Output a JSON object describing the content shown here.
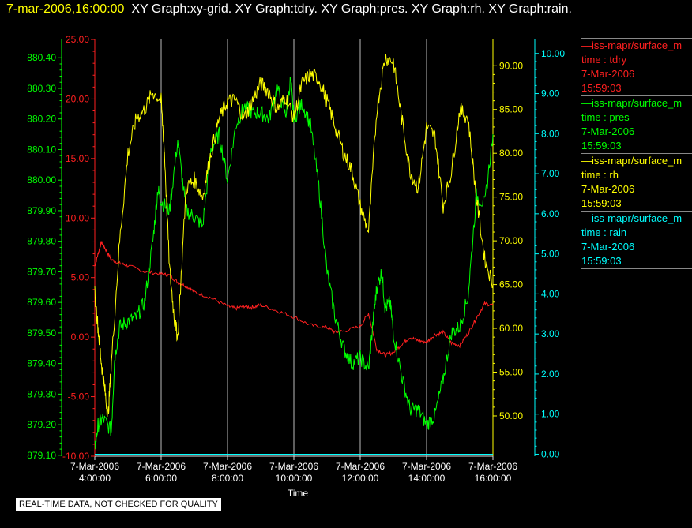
{
  "header": {
    "timestamp": "7-mar-2006,16:00:00",
    "graphs": "XY Graph:xy-grid.  XY Graph:tdry.  XY Graph:pres.  XY Graph:rh.  XY Graph:rain."
  },
  "notice": "REAL-TIME DATA, NOT CHECKED FOR QUALITY",
  "colors": {
    "tdry": "#ff2020",
    "pres": "#00ff00",
    "rh": "#ffff00",
    "rain": "#00ffff",
    "grid": "#bbbbbb"
  },
  "legend": [
    {
      "name": "—iss-mapr/surface_m",
      "var": "time : tdry",
      "date": "7-Mar-2006",
      "time": "15:59:03",
      "color": "#ff2020"
    },
    {
      "name": "—iss-mapr/surface_m",
      "var": "time : pres",
      "date": "7-Mar-2006",
      "time": "15:59:03",
      "color": "#00ff00"
    },
    {
      "name": "—iss-mapr/surface_m",
      "var": "time : rh",
      "date": "7-Mar-2006",
      "time": "15:59:03",
      "color": "#ffff00"
    },
    {
      "name": "—iss-mapr/surface_m",
      "var": "time : rain",
      "date": "7-Mar-2006",
      "time": "15:59:03",
      "color": "#00ffff"
    }
  ],
  "chart_data": {
    "type": "line",
    "xlabel": "Time",
    "x_ticks": [
      [
        "7-Mar-2006",
        "4:00:00"
      ],
      [
        "7-Mar-2006",
        "6:00:00"
      ],
      [
        "7-Mar-2006",
        "8:00:00"
      ],
      [
        "7-Mar-2006",
        "10:00:00"
      ],
      [
        "7-Mar-2006",
        "12:00:00"
      ],
      [
        "7-Mar-2006",
        "14:00:00"
      ],
      [
        "7-Mar-2006",
        "16:00:00"
      ]
    ],
    "xlim_hours": [
      4.0,
      16.0
    ],
    "grid": true,
    "axes": {
      "pres": {
        "ticks": [
          "879.10",
          "879.20",
          "879.30",
          "879.40",
          "879.50",
          "879.60",
          "879.70",
          "879.80",
          "879.90",
          "880.00",
          "880.10",
          "880.20",
          "880.30",
          "880.40"
        ],
        "ylim": [
          879.097,
          880.46
        ],
        "color": "#00ff00"
      },
      "tdry": {
        "ticks": [
          "-10.00",
          "-5.00",
          "0.00",
          "5.00",
          "10.00",
          "15.00",
          "20.00",
          "25.00"
        ],
        "ylim": [
          -10,
          25
        ],
        "color": "#ff2020"
      },
      "rh": {
        "ticks": [
          "50.00",
          "55.00",
          "60.00",
          "65.00",
          "70.00",
          "75.00",
          "80.00",
          "85.00",
          "90.00"
        ],
        "ylim": [
          45.4,
          93.0
        ],
        "color": "#ffff00"
      },
      "rain": {
        "ticks": [
          "0.00",
          "1.00",
          "2.00",
          "3.00",
          "4.00",
          "5.00",
          "6.00",
          "7.00",
          "8.00",
          "9.00",
          "10.00"
        ],
        "ylim": [
          -0.05,
          10.35
        ],
        "color": "#00ffff"
      }
    },
    "series": [
      {
        "name": "tdry",
        "axis": "tdry",
        "x": [
          4.0,
          4.1,
          4.2,
          4.3,
          4.5,
          4.75,
          5.0,
          5.5,
          6.0,
          6.25,
          6.5,
          6.75,
          7.0,
          7.5,
          8.0,
          8.25,
          8.5,
          8.75,
          9.0,
          9.5,
          10.0,
          10.5,
          11.0,
          11.25,
          11.5,
          12.0,
          12.25,
          12.5,
          12.75,
          13.0,
          13.25,
          13.5,
          13.75,
          14.0,
          14.25,
          14.5,
          14.75,
          15.0,
          15.25,
          15.5,
          15.75,
          16.0
        ],
        "y": [
          6.0,
          7.0,
          8.0,
          7.5,
          6.5,
          6.2,
          6.0,
          5.5,
          5.3,
          5.2,
          4.6,
          4.3,
          3.8,
          3.3,
          2.6,
          2.4,
          2.6,
          2.5,
          2.7,
          2.2,
          1.7,
          1.0,
          0.8,
          0.4,
          0.5,
          0.9,
          2.0,
          -1.0,
          -1.5,
          -1.3,
          -0.6,
          0.0,
          -0.3,
          -0.4,
          0.2,
          0.4,
          -0.5,
          -0.7,
          0.3,
          1.6,
          2.8,
          2.7
        ]
      },
      {
        "name": "pres",
        "axis": "pres",
        "x": [
          4.0,
          4.1,
          4.25,
          4.5,
          4.6,
          4.75,
          5.0,
          5.25,
          5.5,
          5.75,
          5.9,
          6.0,
          6.25,
          6.5,
          6.75,
          7.0,
          7.25,
          7.5,
          7.75,
          8.0,
          8.25,
          8.5,
          8.75,
          9.0,
          9.25,
          9.5,
          9.75,
          9.9,
          10.0,
          10.25,
          10.5,
          10.75,
          11.0,
          11.25,
          11.5,
          11.75,
          12.0,
          12.25,
          12.4,
          12.5,
          12.65,
          12.75,
          12.9,
          13.0,
          13.25,
          13.5,
          13.75,
          14.0,
          14.25,
          14.5,
          14.75,
          15.0,
          15.25,
          15.5,
          15.75,
          16.0
        ],
        "y": [
          879.12,
          879.2,
          879.22,
          879.18,
          879.42,
          879.52,
          879.54,
          879.55,
          879.6,
          879.8,
          879.97,
          879.93,
          879.9,
          880.13,
          879.9,
          879.88,
          879.85,
          880.1,
          880.15,
          880.0,
          880.18,
          880.24,
          880.22,
          880.22,
          880.2,
          880.3,
          880.21,
          880.33,
          880.2,
          880.25,
          880.18,
          879.98,
          879.7,
          879.55,
          879.45,
          879.4,
          879.42,
          879.38,
          879.55,
          879.65,
          879.7,
          879.58,
          879.6,
          879.5,
          879.36,
          879.25,
          879.25,
          879.2,
          879.23,
          879.35,
          879.5,
          879.52,
          879.62,
          879.95,
          879.92,
          880.15
        ]
      },
      {
        "name": "rh",
        "axis": "rh",
        "x": [
          4.0,
          4.1,
          4.2,
          4.3,
          4.4,
          4.5,
          4.75,
          5.0,
          5.25,
          5.5,
          5.75,
          6.0,
          6.1,
          6.25,
          6.4,
          6.5,
          6.75,
          7.0,
          7.25,
          7.5,
          7.75,
          8.0,
          8.25,
          8.5,
          8.75,
          9.0,
          9.25,
          9.5,
          9.75,
          10.0,
          10.25,
          10.5,
          10.75,
          11.0,
          11.25,
          11.5,
          11.75,
          12.0,
          12.25,
          12.5,
          12.75,
          13.0,
          13.25,
          13.5,
          13.75,
          14.0,
          14.25,
          14.5,
          14.75,
          15.0,
          15.25,
          15.5,
          15.75,
          16.0
        ],
        "y": [
          64.0,
          60.0,
          56.0,
          53.0,
          50.0,
          56.0,
          70.0,
          80.0,
          84.0,
          85.0,
          87.0,
          86.0,
          80.0,
          67.0,
          61.0,
          59.0,
          76.0,
          77.0,
          75.0,
          80.0,
          84.0,
          86.0,
          86.0,
          84.0,
          86.0,
          88.0,
          87.0,
          85.0,
          86.5,
          84.0,
          88.0,
          89.0,
          88.5,
          86.0,
          83.0,
          80.0,
          78.0,
          74.0,
          71.0,
          85.0,
          91.0,
          90.5,
          84.0,
          78.0,
          76.0,
          83.0,
          82.0,
          74.0,
          78.0,
          85.0,
          84.0,
          75.0,
          68.0,
          65.0
        ]
      },
      {
        "name": "rain",
        "axis": "rain",
        "x": [
          4.0,
          16.0
        ],
        "y": [
          0.0,
          0.0
        ]
      }
    ]
  }
}
